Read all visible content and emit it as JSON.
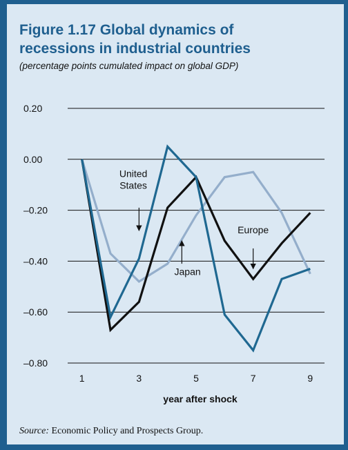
{
  "figure": {
    "title_line1": "Figure 1.17  Global dynamics of",
    "title_line2": "recessions in industrial countries",
    "subtitle": "(percentage points cumulated impact on global GDP)",
    "source_label": "Source:",
    "source_text": " Economic Policy and Prospects Group."
  },
  "colors": {
    "frame": "#1f5f8f",
    "background": "#dbe8f3",
    "title": "#1f5f8f"
  },
  "chart_data": {
    "type": "line",
    "xlabel": "year after shock",
    "ylabel": "",
    "xlim": [
      0.5,
      9.5
    ],
    "ylim": [
      -0.8,
      0.2
    ],
    "x_ticks": [
      1,
      3,
      5,
      7,
      9
    ],
    "y_ticks": [
      0.2,
      0.0,
      -0.2,
      -0.4,
      -0.6,
      -0.8
    ],
    "y_tick_labels": [
      "0.20",
      "0.00",
      "–0.20",
      "–0.40",
      "–0.60",
      "–0.80"
    ],
    "x": [
      1,
      2,
      3,
      4,
      5,
      6,
      7,
      8,
      9
    ],
    "grid": "horizontal",
    "series": [
      {
        "name": "United States",
        "color": "#111111",
        "values": [
          0.0,
          -0.67,
          -0.56,
          -0.19,
          -0.07,
          -0.32,
          -0.47,
          -0.33,
          -0.21
        ]
      },
      {
        "name": "Europe",
        "color": "#1f6891",
        "values": [
          0.0,
          -0.62,
          -0.39,
          0.05,
          -0.07,
          -0.61,
          -0.75,
          -0.47,
          -0.43
        ]
      },
      {
        "name": "Japan",
        "color": "#94aecb",
        "values": [
          0.0,
          -0.37,
          -0.48,
          -0.41,
          -0.22,
          -0.07,
          -0.05,
          -0.21,
          -0.45
        ]
      }
    ],
    "annotations": [
      {
        "key": "us",
        "lines": [
          "United",
          "States"
        ],
        "text_x": 2.8,
        "text_y": -0.07,
        "arrow_from": [
          3.0,
          -0.19
        ],
        "arrow_to": [
          3.0,
          -0.28
        ]
      },
      {
        "key": "europe",
        "lines": [
          "Europe"
        ],
        "text_x": 7.0,
        "text_y": -0.29,
        "arrow_from": [
          7.0,
          -0.35
        ],
        "arrow_to": [
          7.0,
          -0.43
        ]
      },
      {
        "key": "japan",
        "lines": [
          "Japan"
        ],
        "text_x": 4.7,
        "text_y": -0.455,
        "arrow_from": [
          4.5,
          -0.41
        ],
        "arrow_to": [
          4.5,
          -0.32
        ]
      }
    ]
  }
}
